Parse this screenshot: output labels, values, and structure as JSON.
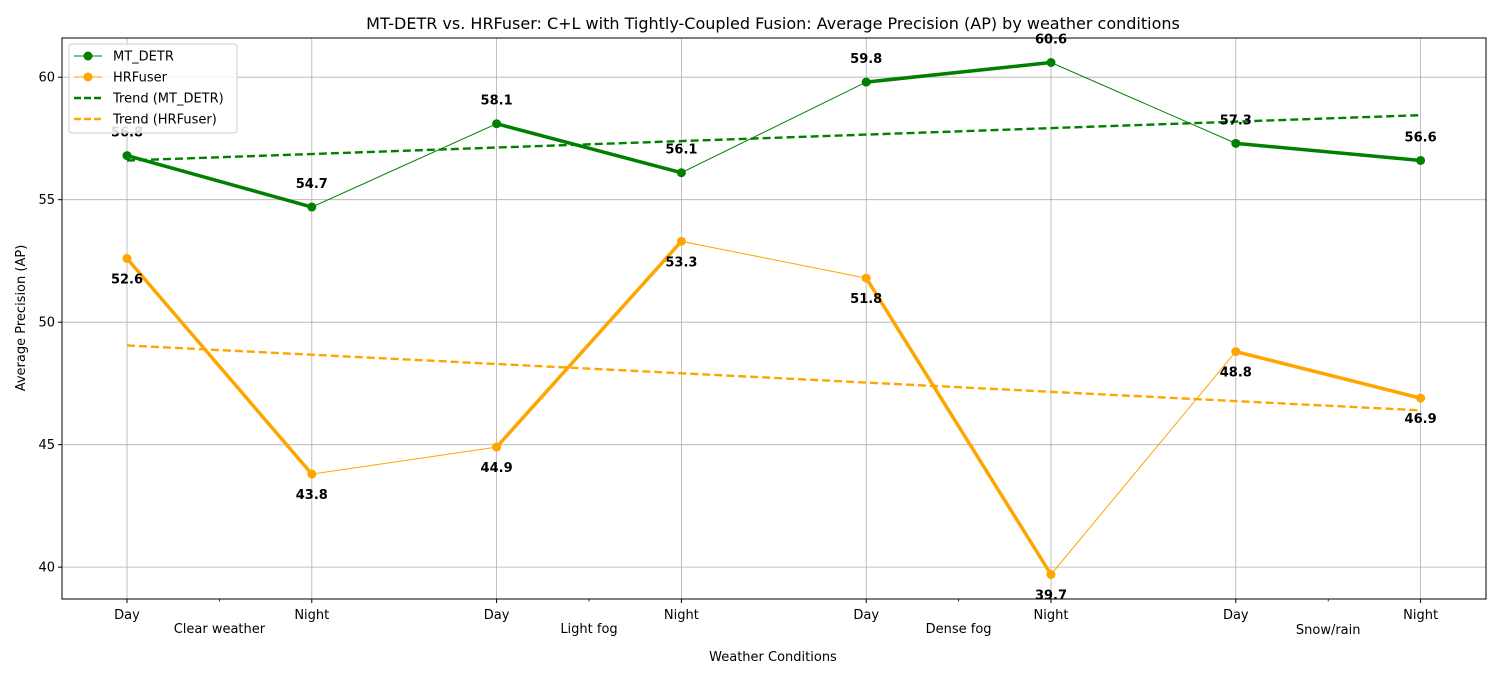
{
  "chart_data": {
    "type": "line",
    "title": "MT-DETR vs. HRFuser: C+L with Tightly-Coupled Fusion: Average Precision (AP) by weather conditions",
    "xlabel": "Weather Conditions",
    "ylabel": "Average Precision (AP)",
    "ylim": [
      38.7,
      61.6
    ],
    "yticks": [
      40,
      45,
      50,
      55,
      60
    ],
    "grid": true,
    "legend_position": "top-left",
    "categories": [
      "Day",
      "Night",
      "Day",
      "Night",
      "Day",
      "Night",
      "Day",
      "Night"
    ],
    "groups": [
      "Clear weather",
      "Light fog",
      "Dense fog",
      "Snow/rain"
    ],
    "series": [
      {
        "name": "MT_DETR",
        "color": "#008000",
        "values": [
          56.8,
          54.7,
          58.1,
          56.1,
          59.8,
          60.6,
          57.3,
          56.6
        ],
        "labels": [
          "56.8",
          "54.7",
          "58.1",
          "56.1",
          "59.8",
          "60.6",
          "57.3",
          "56.6"
        ]
      },
      {
        "name": "HRFuser",
        "color": "#FFA500",
        "values": [
          52.6,
          43.8,
          44.9,
          53.3,
          51.8,
          39.7,
          48.8,
          46.9
        ],
        "labels": [
          "52.6",
          "43.8",
          "44.9",
          "53.3",
          "51.8",
          "39.7",
          "48.8",
          "46.9"
        ]
      }
    ],
    "trends": [
      {
        "name": "Trend (MT_DETR)",
        "color": "#008000",
        "start": 56.6,
        "end": 58.45
      },
      {
        "name": "Trend (HRFuser)",
        "color": "#FFA500",
        "start": 49.05,
        "end": 46.4
      }
    ]
  }
}
